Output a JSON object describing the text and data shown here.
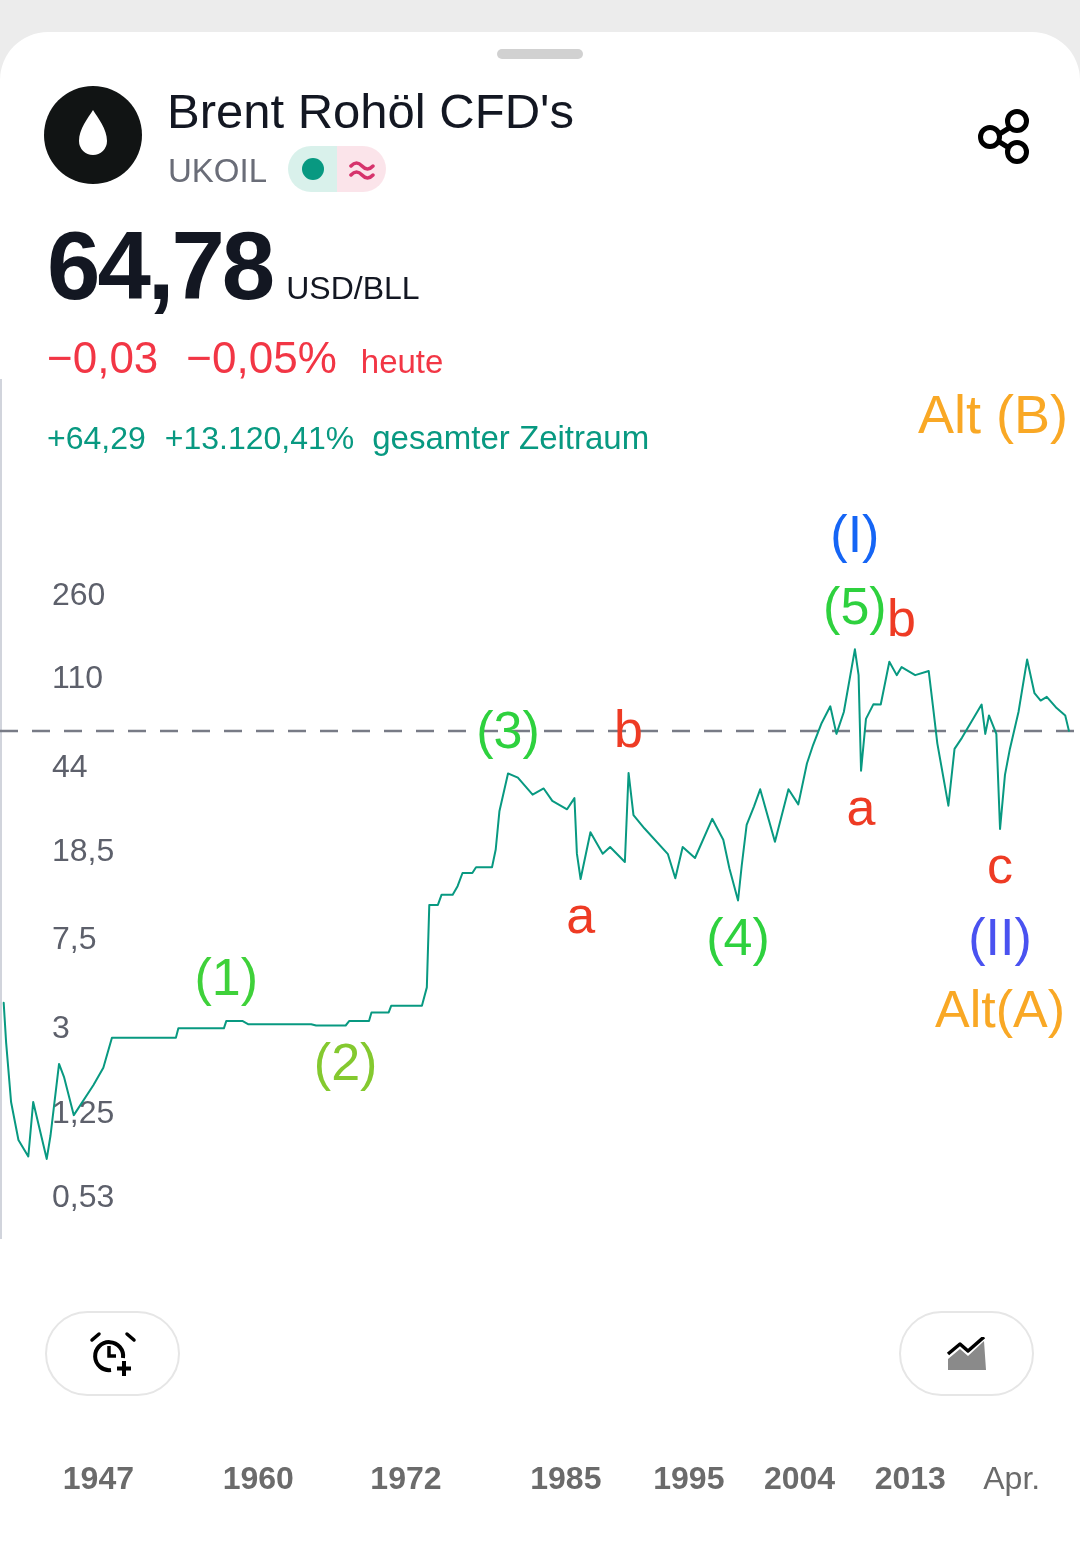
{
  "chart_data": {
    "type": "line",
    "title": "Brent Rohöl CFD's",
    "subtitle": "UKOIL",
    "annotations": [
      "64,78",
      "USD/BLL",
      "−0,03",
      "−0,05%",
      "heute",
      "+64,29",
      "+13.120,41%",
      "gesamter Zeitraum",
      "Alt (B)",
      {
        "text": "(1)",
        "x": 1957.4,
        "y": 3.27
      },
      {
        "text": "(2)",
        "x": 1967.1,
        "y": 3.12
      },
      {
        "text": "(3)",
        "x": 1980.3,
        "y": 41.8
      },
      {
        "text": "a",
        "x": 1986.2,
        "y": 14.1
      },
      {
        "text": "b",
        "x": 1990.1,
        "y": 42.0
      },
      {
        "text": "(4)",
        "x": 1999.0,
        "y": 11.3
      },
      {
        "text": "(5)",
        "x": 2008.5,
        "y": 150
      },
      {
        "text": "(I)",
        "x": 2008.5,
        "y": 150
      },
      {
        "text": "a",
        "x": 2009.0,
        "y": 43
      },
      {
        "text": "b",
        "x": 2011.3,
        "y": 132
      },
      {
        "text": "c",
        "x": 2020.3,
        "y": 23.6
      },
      {
        "text": "(II)",
        "x": 2020.3,
        "y": 23.6
      },
      {
        "text": "Alt(A)",
        "x": 2020.3,
        "y": 23.6
      }
    ],
    "x": [
      1939.3,
      1939.5,
      1939.9,
      1940.5,
      1941.3,
      1941.7,
      1942.8,
      1943.1,
      1943.8,
      1944.2,
      1945.0,
      1946.6,
      1947.4,
      1948.1,
      1953.3,
      1953.5,
      1957.2,
      1957.4,
      1958.7,
      1959.2,
      1964.3,
      1964.7,
      1967.1,
      1967.4,
      1969.0,
      1969.2,
      1970.6,
      1970.8,
      1973.3,
      1973.7,
      1973.9,
      1974.6,
      1974.9,
      1975.8,
      1976.2,
      1976.6,
      1977.4,
      1977.7,
      1979.0,
      1979.3,
      1979.6,
      1980.3,
      1981.1,
      1982.3,
      1983.2,
      1983.9,
      1985.1,
      1985.7,
      1985.9,
      1986.2,
      1987.0,
      1988.0,
      1988.6,
      1989.8,
      1990.1,
      1990.5,
      1991.4,
      1993.3,
      1993.9,
      1994.5,
      1995.5,
      1996.9,
      1997.8,
      1998.3,
      1999.0,
      1999.3,
      1999.7,
      2000.3,
      2000.8,
      2002.0,
      2003.1,
      2003.9,
      2004.6,
      2005.1,
      2005.8,
      2006.5,
      2007.0,
      2007.6,
      2008.5,
      2008.8,
      2009.0,
      2009.4,
      2010.0,
      2010.6,
      2011.3,
      2011.9,
      2012.3,
      2013.4,
      2014.5,
      2014.9,
      2015.2,
      2016.1,
      2016.6,
      2017.2,
      2018.8,
      2019.1,
      2019.4,
      2020.0,
      2020.3,
      2020.7,
      2021.1,
      2021.8,
      2022.5,
      2023.1,
      2023.6,
      2024.1,
      2024.9,
      2025.6,
      2025.9
    ],
    "values": [
      3.94,
      2.61,
      1.42,
      0.96,
      0.81,
      1.42,
      0.79,
      1.0,
      2.1,
      1.84,
      1.24,
      1.69,
      2.02,
      2.75,
      2.75,
      3.03,
      3.03,
      3.27,
      3.27,
      3.16,
      3.16,
      3.12,
      3.12,
      3.27,
      3.27,
      3.57,
      3.57,
      3.82,
      3.82,
      4.62,
      10.8,
      10.8,
      12.0,
      12.0,
      13.1,
      15.0,
      15.0,
      15.9,
      15.9,
      19.1,
      28.3,
      41.8,
      40.0,
      33.6,
      35.8,
      31.5,
      28.9,
      32.4,
      18.3,
      14.1,
      22.8,
      18.3,
      19.6,
      16.8,
      42.0,
      27.2,
      23.7,
      18.2,
      14.2,
      19.6,
      17.5,
      26.2,
      21.1,
      15.7,
      11.3,
      16.2,
      24.6,
      29.8,
      35.5,
      20.7,
      35.5,
      30.4,
      46.3,
      56,
      70.3,
      83.4,
      62.8,
      78.7,
      150,
      115,
      43,
      73.3,
      85.1,
      85,
      132,
      115,
      125,
      115,
      120,
      78.7,
      57,
      30,
      53.8,
      60.3,
      85,
      62.8,
      75.9,
      62.8,
      23.6,
      41.2,
      53.8,
      78.7,
      135,
      95.5,
      88.5,
      92,
      81.9,
      75.9,
      64.78
    ],
    "color": "#089981",
    "log": "y",
    "xlim": [
      1939,
      2026.8
    ],
    "xticks": [
      1947,
      1960,
      1972,
      1985,
      1995,
      2004,
      2013,
      {
        "value": 2021.25,
        "label": "Apr."
      }
    ],
    "ylim": [
      0.35,
      2400
    ],
    "yticks": [
      260,
      110,
      44,
      {
        "value": 18.5,
        "label": "18,5"
      },
      {
        "value": 7.5,
        "label": "7,5"
      },
      3,
      {
        "value": 1.25,
        "label": "1,25"
      },
      {
        "value": 0.53,
        "label": "0,53"
      }
    ],
    "ref_lines": [
      {
        "axis": "y",
        "value": 64.78,
        "color": "#787b86",
        "line_style": "dashed"
      }
    ]
  }
}
